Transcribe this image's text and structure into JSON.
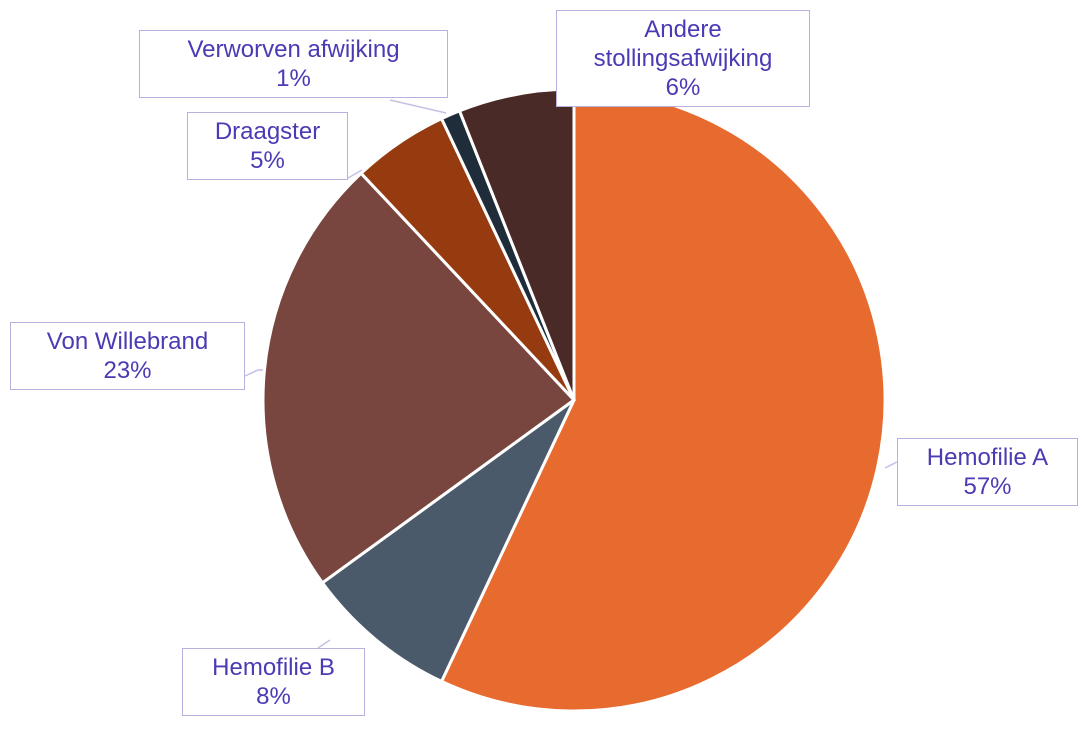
{
  "chart_data": {
    "type": "pie",
    "categories": [
      "Hemofilie A",
      "Hemofilie B",
      "Von Willebrand",
      "Draagster",
      "Verworven afwijking",
      "Andere stollingsafwijking"
    ],
    "values": [
      57,
      8,
      23,
      5,
      1,
      6
    ],
    "value_labels": [
      "57%",
      "8%",
      "23%",
      "5%",
      "1%",
      "6%"
    ],
    "colors": [
      "#e76a2e",
      "#4b5a6a",
      "#78463e",
      "#963b10",
      "#1f2d3a",
      "#4a2a26"
    ]
  }
}
